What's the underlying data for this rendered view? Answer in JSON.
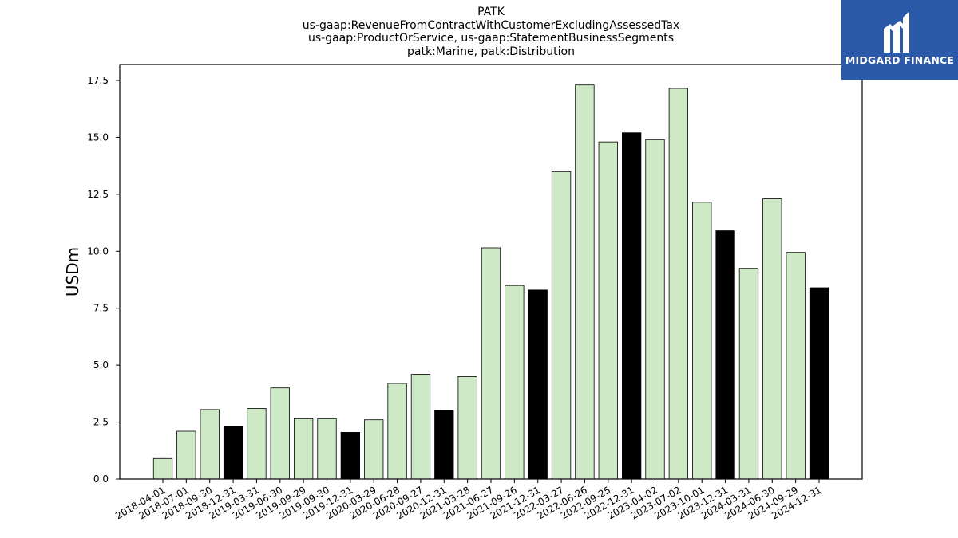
{
  "chart_data": {
    "type": "bar",
    "title_lines": [
      "PATK",
      "us-gaap:RevenueFromContractWithCustomerExcludingAssessedTax",
      "us-gaap:ProductOrService, us-gaap:StatementBusinessSegments",
      "patk:Marine, patk:Distribution"
    ],
    "ylabel": "USDm",
    "xlabel": "",
    "ylim": [
      0,
      18.2
    ],
    "yticks": [
      "0.0",
      "2.5",
      "5.0",
      "7.5",
      "10.0",
      "12.5",
      "15.0",
      "17.5"
    ],
    "categories": [
      "2018-04-01",
      "2018-07-01",
      "2018-09-30",
      "2018-12-31",
      "2019-03-31",
      "2019-06-30",
      "2019-09-29",
      "2019-09-30",
      "2019-12-31",
      "2020-03-29",
      "2020-06-28",
      "2020-09-27",
      "2020-12-31",
      "2021-03-28",
      "2021-06-27",
      "2021-09-26",
      "2021-12-31",
      "2022-03-27",
      "2022-06-26",
      "2022-09-25",
      "2022-12-31",
      "2023-04-02",
      "2023-07-02",
      "2023-10-01",
      "2023-12-31",
      "2024-03-31",
      "2024-06-30",
      "2024-09-29",
      "2024-12-31"
    ],
    "values": [
      0.9,
      2.1,
      3.05,
      2.3,
      3.1,
      4.0,
      2.65,
      2.65,
      2.05,
      2.6,
      4.2,
      4.6,
      3.0,
      4.5,
      10.15,
      8.5,
      8.3,
      13.5,
      17.3,
      14.8,
      15.2,
      14.9,
      17.15,
      12.15,
      10.9,
      9.25,
      12.3,
      9.95,
      8.4
    ],
    "highlighted": [
      false,
      false,
      false,
      true,
      false,
      false,
      false,
      false,
      true,
      false,
      false,
      false,
      true,
      false,
      false,
      false,
      true,
      false,
      false,
      false,
      true,
      false,
      false,
      false,
      true,
      false,
      false,
      false,
      true
    ],
    "colors": {
      "bar": "#cde9c6",
      "highlight": "#000000",
      "edge": "#000000"
    }
  },
  "logo": {
    "text": "MIDGARD FINANCE",
    "background": "#2b5aa8"
  }
}
